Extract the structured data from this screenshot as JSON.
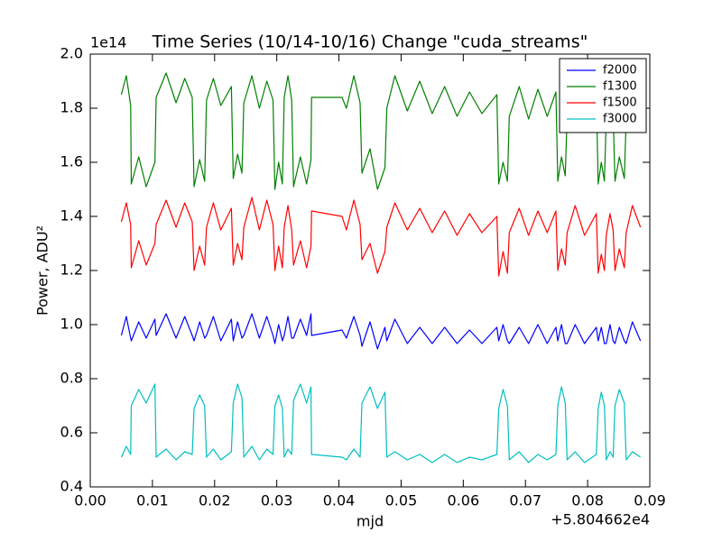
{
  "chart_data": {
    "type": "line",
    "title": "Time Series (10/14-10/16) Change \"cuda_streams\"",
    "xlabel": "mjd",
    "ylabel": "Power, ADU²",
    "y_offset_label": "1e14",
    "x_offset_label": "+5.804662e4",
    "xlim": [
      0,
      0.09
    ],
    "ylim": [
      0.4,
      2.0
    ],
    "xticks": [
      {
        "value": 0,
        "label": "0.00"
      },
      0.01,
      0.02,
      0.03,
      0.04,
      0.05,
      0.06,
      0.07,
      0.08,
      0.09
    ],
    "yticks": [
      0.4,
      0.6,
      0.8,
      {
        "value": 1,
        "label": "1.0"
      },
      1.2,
      1.4,
      1.6,
      1.8,
      {
        "value": 2,
        "label": "2.0"
      }
    ],
    "legend": "upper right",
    "x": [
      0.005,
      0.0058,
      0.0065,
      0.0066,
      0.0078,
      0.009,
      0.0104,
      0.0106,
      0.0122,
      0.0138,
      0.0152,
      0.0164,
      0.0167,
      0.0176,
      0.0184,
      0.0187,
      0.0198,
      0.021,
      0.0227,
      0.023,
      0.0237,
      0.0244,
      0.0247,
      0.026,
      0.0272,
      0.0284,
      0.0294,
      0.0297,
      0.0303,
      0.0309,
      0.0312,
      0.0318,
      0.0324,
      0.0327,
      0.0338,
      0.0348,
      0.0355,
      0.0356,
      0.0405,
      0.0412,
      0.0424,
      0.0434,
      0.0437,
      0.045,
      0.0462,
      0.0474,
      0.0477,
      0.049,
      0.051,
      0.053,
      0.055,
      0.057,
      0.059,
      0.061,
      0.063,
      0.0654,
      0.0657,
      0.0664,
      0.0671,
      0.0674,
      0.069,
      0.0705,
      0.072,
      0.0735,
      0.0749,
      0.0752,
      0.0758,
      0.0764,
      0.0767,
      0.078,
      0.0795,
      0.0814,
      0.0817,
      0.0822,
      0.0827,
      0.083,
      0.0836,
      0.0841,
      0.0844,
      0.0851,
      0.0859,
      0.0862,
      0.0872,
      0.0885
    ],
    "series": [
      {
        "name": "f2000",
        "color": "#0000ff",
        "values": [
          0.96,
          1.03,
          0.95,
          0.94,
          1.01,
          0.95,
          1.02,
          0.96,
          1.04,
          0.95,
          1.03,
          0.96,
          0.94,
          1.01,
          0.95,
          0.96,
          1.03,
          0.94,
          1.02,
          0.94,
          1.01,
          0.95,
          0.96,
          1.04,
          0.95,
          1.03,
          0.96,
          0.93,
          1.0,
          0.94,
          0.96,
          1.03,
          0.95,
          0.95,
          1.02,
          0.96,
          1.04,
          0.96,
          0.98,
          0.95,
          1.03,
          0.96,
          0.92,
          1.01,
          0.91,
          0.99,
          0.94,
          1.02,
          0.93,
          0.99,
          0.93,
          0.99,
          0.93,
          0.98,
          0.93,
          0.99,
          0.94,
          1.0,
          0.94,
          0.93,
          0.99,
          0.93,
          1.0,
          0.93,
          0.99,
          0.94,
          1.0,
          0.93,
          0.93,
          1.0,
          0.93,
          0.99,
          0.94,
          0.99,
          0.93,
          0.93,
          1.0,
          0.94,
          0.93,
          0.99,
          0.94,
          0.93,
          1.01,
          0.94
        ]
      },
      {
        "name": "f1300",
        "color": "#008000",
        "values": [
          1.85,
          1.92,
          1.81,
          1.52,
          1.62,
          1.51,
          1.6,
          1.84,
          1.93,
          1.82,
          1.91,
          1.84,
          1.51,
          1.61,
          1.53,
          1.83,
          1.91,
          1.81,
          1.88,
          1.54,
          1.63,
          1.56,
          1.82,
          1.92,
          1.8,
          1.9,
          1.83,
          1.5,
          1.6,
          1.52,
          1.84,
          1.92,
          1.83,
          1.51,
          1.62,
          1.52,
          1.61,
          1.84,
          1.84,
          1.8,
          1.92,
          1.82,
          1.56,
          1.65,
          1.5,
          1.58,
          1.8,
          1.92,
          1.79,
          1.9,
          1.78,
          1.88,
          1.77,
          1.86,
          1.78,
          1.85,
          1.52,
          1.6,
          1.53,
          1.77,
          1.88,
          1.76,
          1.87,
          1.77,
          1.86,
          1.53,
          1.62,
          1.55,
          1.77,
          1.89,
          1.76,
          1.85,
          1.52,
          1.6,
          1.53,
          1.77,
          1.84,
          1.78,
          1.53,
          1.62,
          1.54,
          1.76,
          1.87,
          1.78
        ]
      },
      {
        "name": "f1500",
        "color": "#ff0000",
        "values": [
          1.38,
          1.45,
          1.37,
          1.21,
          1.31,
          1.22,
          1.3,
          1.37,
          1.46,
          1.36,
          1.45,
          1.38,
          1.2,
          1.29,
          1.22,
          1.36,
          1.45,
          1.35,
          1.43,
          1.22,
          1.3,
          1.24,
          1.36,
          1.47,
          1.35,
          1.46,
          1.37,
          1.2,
          1.29,
          1.21,
          1.36,
          1.44,
          1.35,
          1.22,
          1.31,
          1.21,
          1.29,
          1.42,
          1.4,
          1.35,
          1.46,
          1.37,
          1.24,
          1.3,
          1.19,
          1.27,
          1.36,
          1.45,
          1.35,
          1.43,
          1.34,
          1.42,
          1.33,
          1.41,
          1.34,
          1.4,
          1.18,
          1.27,
          1.19,
          1.34,
          1.43,
          1.33,
          1.42,
          1.34,
          1.42,
          1.2,
          1.28,
          1.22,
          1.34,
          1.44,
          1.33,
          1.41,
          1.19,
          1.26,
          1.2,
          1.33,
          1.41,
          1.35,
          1.2,
          1.28,
          1.21,
          1.34,
          1.44,
          1.36
        ]
      },
      {
        "name": "f3000",
        "color": "#00bfbf",
        "values": [
          0.51,
          0.55,
          0.52,
          0.7,
          0.76,
          0.71,
          0.78,
          0.51,
          0.54,
          0.5,
          0.53,
          0.52,
          0.69,
          0.74,
          0.7,
          0.51,
          0.54,
          0.5,
          0.53,
          0.71,
          0.78,
          0.73,
          0.51,
          0.55,
          0.5,
          0.54,
          0.52,
          0.7,
          0.74,
          0.69,
          0.51,
          0.54,
          0.52,
          0.72,
          0.78,
          0.71,
          0.77,
          0.52,
          0.51,
          0.5,
          0.54,
          0.51,
          0.71,
          0.77,
          0.69,
          0.75,
          0.51,
          0.53,
          0.5,
          0.52,
          0.49,
          0.52,
          0.49,
          0.51,
          0.5,
          0.52,
          0.69,
          0.76,
          0.7,
          0.5,
          0.53,
          0.49,
          0.52,
          0.5,
          0.52,
          0.7,
          0.77,
          0.71,
          0.5,
          0.53,
          0.49,
          0.52,
          0.69,
          0.75,
          0.7,
          0.5,
          0.53,
          0.51,
          0.7,
          0.76,
          0.71,
          0.5,
          0.53,
          0.51
        ]
      }
    ]
  }
}
